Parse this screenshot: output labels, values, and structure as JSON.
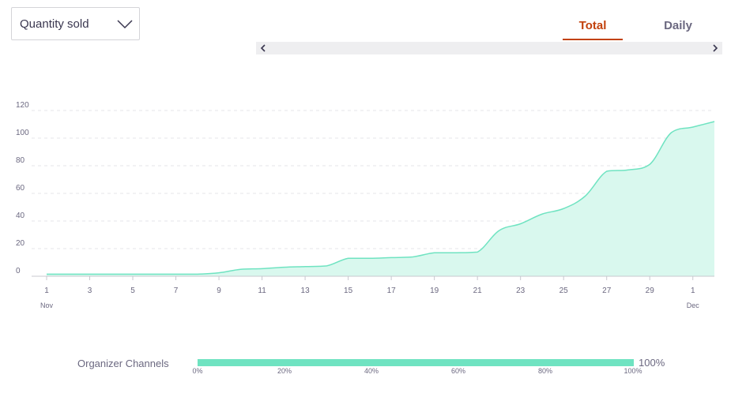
{
  "dropdown": {
    "label": "Quantity sold"
  },
  "tabs": [
    {
      "label": "Total",
      "active": true
    },
    {
      "label": "Daily",
      "active": false
    }
  ],
  "colors": {
    "accent": "#c2410c",
    "area_fill": "#d9f8ee",
    "area_line": "#6fe3c1",
    "bar_fill": "#6fe3c1"
  },
  "icons": {
    "dropdown": "chevron-down-icon",
    "scroll_left": "chevron-left-icon",
    "scroll_right": "chevron-right-icon"
  },
  "chart_data": {
    "type": "area",
    "title": "",
    "xlabel": "",
    "ylabel": "",
    "ylim": [
      0,
      120
    ],
    "yticks": [
      0,
      20,
      40,
      60,
      80,
      100,
      120
    ],
    "grid": true,
    "x": [
      "Nov 1",
      "Nov 2",
      "Nov 3",
      "Nov 4",
      "Nov 5",
      "Nov 6",
      "Nov 7",
      "Nov 8",
      "Nov 9",
      "Nov 10",
      "Nov 11",
      "Nov 12",
      "Nov 13",
      "Nov 14",
      "Nov 15",
      "Nov 16",
      "Nov 17",
      "Nov 18",
      "Nov 19",
      "Nov 20",
      "Nov 21",
      "Nov 22",
      "Nov 23",
      "Nov 24",
      "Nov 25",
      "Nov 26",
      "Nov 27",
      "Nov 28",
      "Nov 29",
      "Nov 30",
      "Dec 1",
      "Dec 2"
    ],
    "xtick_labels": [
      {
        "index": 0,
        "label": "1",
        "sublabel": "Nov"
      },
      {
        "index": 2,
        "label": "3",
        "sublabel": ""
      },
      {
        "index": 4,
        "label": "5",
        "sublabel": ""
      },
      {
        "index": 6,
        "label": "7",
        "sublabel": ""
      },
      {
        "index": 8,
        "label": "9",
        "sublabel": ""
      },
      {
        "index": 10,
        "label": "11",
        "sublabel": ""
      },
      {
        "index": 12,
        "label": "13",
        "sublabel": ""
      },
      {
        "index": 14,
        "label": "15",
        "sublabel": ""
      },
      {
        "index": 16,
        "label": "17",
        "sublabel": ""
      },
      {
        "index": 18,
        "label": "19",
        "sublabel": ""
      },
      {
        "index": 20,
        "label": "21",
        "sublabel": ""
      },
      {
        "index": 22,
        "label": "23",
        "sublabel": ""
      },
      {
        "index": 24,
        "label": "25",
        "sublabel": ""
      },
      {
        "index": 26,
        "label": "27",
        "sublabel": ""
      },
      {
        "index": 28,
        "label": "29",
        "sublabel": ""
      },
      {
        "index": 30,
        "label": "1",
        "sublabel": "Dec"
      }
    ],
    "series": [
      {
        "values": [
          1.5,
          1.5,
          1.5,
          1.5,
          1.5,
          1.5,
          1.5,
          1.5,
          2.5,
          5,
          5.5,
          6.5,
          7,
          7.5,
          13,
          13,
          13.5,
          14,
          17,
          17,
          17.5,
          33,
          38,
          45,
          49,
          58,
          76,
          77,
          81,
          104,
          108,
          112
        ]
      }
    ]
  },
  "channels": {
    "label": "Organizer Channels",
    "percent_label": "100%",
    "fill_fraction": 1.0,
    "ticks": [
      "0%",
      "20%",
      "40%",
      "60%",
      "80%",
      "100%"
    ]
  }
}
